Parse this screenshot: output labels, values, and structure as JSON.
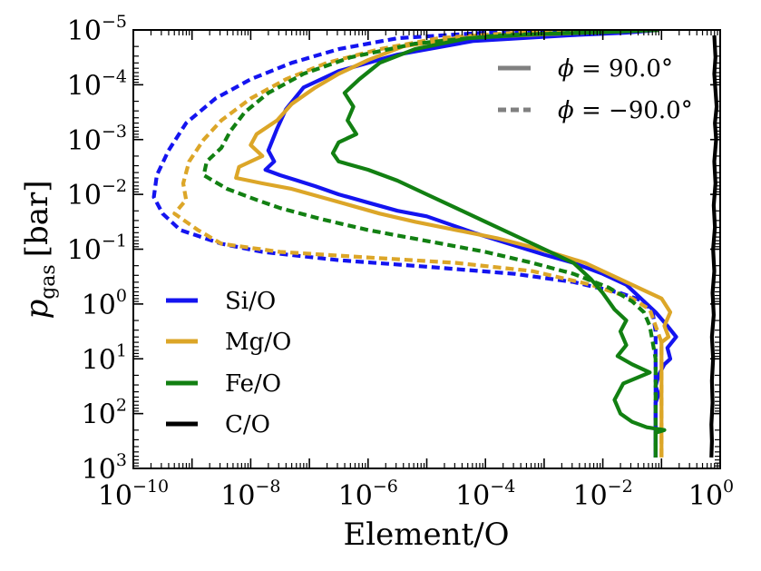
{
  "chart_data": {
    "type": "line",
    "xlabel": "Element/O",
    "ylabel": "p_gas [bar]",
    "ylabel_main": "p",
    "ylabel_sub": "gas",
    "ylabel_unit": "[bar]",
    "xscale": "log",
    "yscale": "log",
    "y_inverted": true,
    "xlim": [
      1e-10,
      1
    ],
    "ylim": [
      1000,
      1e-05
    ],
    "x_ticks": [
      {
        "base": "10",
        "exp": "−10",
        "value": 1e-10
      },
      {
        "base": "10",
        "exp": "−8",
        "value": 1e-08
      },
      {
        "base": "10",
        "exp": "−6",
        "value": 1e-06
      },
      {
        "base": "10",
        "exp": "−4",
        "value": 0.0001
      },
      {
        "base": "10",
        "exp": "−2",
        "value": 0.01
      },
      {
        "base": "10",
        "exp": "0",
        "value": 1
      }
    ],
    "y_ticks": [
      {
        "base": "10",
        "exp": "−5",
        "value": 1e-05
      },
      {
        "base": "10",
        "exp": "−4",
        "value": 0.0001
      },
      {
        "base": "10",
        "exp": "−3",
        "value": 0.001
      },
      {
        "base": "10",
        "exp": "−2",
        "value": 0.01
      },
      {
        "base": "10",
        "exp": "−1",
        "value": 0.1
      },
      {
        "base": "10",
        "exp": "0",
        "value": 1
      },
      {
        "base": "10",
        "exp": "1",
        "value": 10
      },
      {
        "base": "10",
        "exp": "2",
        "value": 100
      },
      {
        "base": "10",
        "exp": "3",
        "value": 1000
      }
    ],
    "linestyle_legend": [
      {
        "style": "solid",
        "label_phi": "ϕ",
        "label_value": " = 90.0°"
      },
      {
        "style": "dashed",
        "label_phi": "ϕ",
        "label_value": " = −90.0°"
      }
    ],
    "legend_position": "lower-left",
    "linestyle_legend_position": "top-right",
    "colors": {
      "Si/O": "#1414f0",
      "Mg/O": "#dca628",
      "Fe/O": "#128012",
      "C/O": "#000000"
    },
    "series": [
      {
        "name": "Si/O",
        "phi": 90,
        "style": "solid",
        "color": "#1414f0",
        "points": [
          [
            -1.05,
            -5
          ],
          [
            -1.6,
            -4.95
          ],
          [
            -2.6,
            -4.9
          ],
          [
            -4.2,
            -4.8
          ],
          [
            -5.5,
            -4.55
          ],
          [
            -6.5,
            -4.25
          ],
          [
            -7.1,
            -3.95
          ],
          [
            -7.4,
            -3.55
          ],
          [
            -7.55,
            -3.2
          ],
          [
            -7.7,
            -2.8
          ],
          [
            -7.6,
            -2.6
          ],
          [
            -7.75,
            -2.45
          ],
          [
            -7.5,
            -2.35
          ],
          [
            -7.2,
            -2.25
          ],
          [
            -6.9,
            -2.15
          ],
          [
            -6.5,
            -2.0
          ],
          [
            -6.0,
            -1.85
          ],
          [
            -5.5,
            -1.7
          ],
          [
            -5.0,
            -1.6
          ],
          [
            -4.6,
            -1.45
          ],
          [
            -4.2,
            -1.3
          ],
          [
            -3.6,
            -1.1
          ],
          [
            -3.0,
            -0.9
          ],
          [
            -2.5,
            -0.75
          ],
          [
            -2.0,
            -0.55
          ],
          [
            -1.6,
            -0.35
          ],
          [
            -1.3,
            -0.05
          ],
          [
            -1.1,
            0.15
          ],
          [
            -0.9,
            0.4
          ],
          [
            -0.75,
            0.6
          ],
          [
            -0.9,
            0.8
          ],
          [
            -0.85,
            1.0
          ],
          [
            -0.95,
            1.1
          ],
          [
            -1.05,
            1.3
          ],
          [
            -1.1,
            1.5
          ],
          [
            -1.05,
            1.65
          ],
          [
            -1.1,
            1.8
          ],
          [
            -1.1,
            2.2
          ],
          [
            -1.1,
            2.8
          ]
        ]
      },
      {
        "name": "Si/O",
        "phi": -90,
        "style": "dashed",
        "color": "#1414f0",
        "points": [
          [
            -2.5,
            -5
          ],
          [
            -4.0,
            -4.95
          ],
          [
            -5.5,
            -4.85
          ],
          [
            -6.5,
            -4.65
          ],
          [
            -7.3,
            -4.4
          ],
          [
            -8.0,
            -4.1
          ],
          [
            -8.6,
            -3.75
          ],
          [
            -9.1,
            -3.3
          ],
          [
            -9.4,
            -2.8
          ],
          [
            -9.6,
            -2.35
          ],
          [
            -9.65,
            -1.95
          ],
          [
            -9.5,
            -1.65
          ],
          [
            -9.2,
            -1.35
          ],
          [
            -8.5,
            -1.1
          ],
          [
            -7.8,
            -0.95
          ],
          [
            -6.5,
            -0.8
          ],
          [
            -5.0,
            -0.68
          ],
          [
            -3.5,
            -0.55
          ],
          [
            -2.5,
            -0.4
          ],
          [
            -1.7,
            -0.2
          ],
          [
            -1.3,
            -0.05
          ],
          [
            -1.15,
            0.15
          ],
          [
            -1.1,
            0.5
          ],
          [
            -1.1,
            1.0
          ],
          [
            -1.1,
            1.5
          ],
          [
            -1.1,
            2.0
          ],
          [
            -1.1,
            2.8
          ]
        ]
      },
      {
        "name": "Mg/O",
        "phi": 90,
        "style": "solid",
        "color": "#dca628",
        "points": [
          [
            -1.05,
            -5
          ],
          [
            -1.8,
            -4.97
          ],
          [
            -3.0,
            -4.92
          ],
          [
            -4.5,
            -4.85
          ],
          [
            -5.4,
            -4.7
          ],
          [
            -6.0,
            -4.45
          ],
          [
            -6.5,
            -4.2
          ],
          [
            -6.9,
            -3.95
          ],
          [
            -7.3,
            -3.65
          ],
          [
            -7.55,
            -3.35
          ],
          [
            -7.9,
            -3.1
          ],
          [
            -8.0,
            -2.9
          ],
          [
            -7.8,
            -2.7
          ],
          [
            -8.2,
            -2.5
          ],
          [
            -8.25,
            -2.3
          ],
          [
            -7.8,
            -2.2
          ],
          [
            -7.3,
            -2.1
          ],
          [
            -6.8,
            -1.95
          ],
          [
            -6.3,
            -1.8
          ],
          [
            -5.8,
            -1.65
          ],
          [
            -5.2,
            -1.5
          ],
          [
            -4.5,
            -1.35
          ],
          [
            -3.8,
            -1.2
          ],
          [
            -3.0,
            -0.98
          ],
          [
            -2.3,
            -0.75
          ],
          [
            -1.8,
            -0.5
          ],
          [
            -1.3,
            -0.25
          ],
          [
            -1.0,
            -0.1
          ],
          [
            -0.85,
            0.15
          ],
          [
            -0.95,
            0.4
          ],
          [
            -0.88,
            0.6
          ],
          [
            -1.0,
            0.7
          ],
          [
            -1.0,
            1.0
          ],
          [
            -1.0,
            2.0
          ],
          [
            -1.0,
            2.8
          ]
        ]
      },
      {
        "name": "Mg/O",
        "phi": -90,
        "style": "dashed",
        "color": "#dca628",
        "points": [
          [
            -2.0,
            -5
          ],
          [
            -3.5,
            -4.95
          ],
          [
            -4.8,
            -4.85
          ],
          [
            -5.8,
            -4.65
          ],
          [
            -6.7,
            -4.4
          ],
          [
            -7.4,
            -4.1
          ],
          [
            -8.0,
            -3.75
          ],
          [
            -8.5,
            -3.35
          ],
          [
            -8.8,
            -3.0
          ],
          [
            -9.05,
            -2.6
          ],
          [
            -9.15,
            -2.2
          ],
          [
            -9.1,
            -1.9
          ],
          [
            -9.3,
            -1.65
          ],
          [
            -8.9,
            -1.35
          ],
          [
            -8.5,
            -1.1
          ],
          [
            -7.5,
            -0.95
          ],
          [
            -6.0,
            -0.85
          ],
          [
            -4.5,
            -0.75
          ],
          [
            -3.2,
            -0.6
          ],
          [
            -2.2,
            -0.35
          ],
          [
            -1.5,
            -0.1
          ],
          [
            -1.2,
            0.1
          ],
          [
            -1.1,
            0.4
          ],
          [
            -1.0,
            0.7
          ],
          [
            -1.0,
            2.8
          ]
        ]
      },
      {
        "name": "Fe/O",
        "phi": 90,
        "style": "solid",
        "color": "#128012",
        "points": [
          [
            -1.05,
            -5
          ],
          [
            -2.0,
            -4.96
          ],
          [
            -3.2,
            -4.92
          ],
          [
            -4.3,
            -4.85
          ],
          [
            -5.2,
            -4.65
          ],
          [
            -5.8,
            -4.4
          ],
          [
            -6.15,
            -4.1
          ],
          [
            -6.4,
            -3.85
          ],
          [
            -6.25,
            -3.6
          ],
          [
            -6.35,
            -3.35
          ],
          [
            -6.2,
            -3.1
          ],
          [
            -6.5,
            -2.95
          ],
          [
            -6.6,
            -2.75
          ],
          [
            -6.5,
            -2.6
          ],
          [
            -6.0,
            -2.45
          ],
          [
            -5.5,
            -2.25
          ],
          [
            -5.0,
            -2.0
          ],
          [
            -4.5,
            -1.75
          ],
          [
            -4.0,
            -1.5
          ],
          [
            -3.4,
            -1.2
          ],
          [
            -2.9,
            -0.95
          ],
          [
            -2.5,
            -0.75
          ],
          [
            -2.2,
            -0.45
          ],
          [
            -2.0,
            -0.2
          ],
          [
            -1.8,
            0.1
          ],
          [
            -1.6,
            0.3
          ],
          [
            -1.7,
            0.5
          ],
          [
            -1.6,
            0.75
          ],
          [
            -1.75,
            0.95
          ],
          [
            -1.5,
            1.1
          ],
          [
            -1.2,
            1.25
          ],
          [
            -1.65,
            1.45
          ],
          [
            -1.8,
            1.75
          ],
          [
            -1.7,
            2.0
          ],
          [
            -1.5,
            2.15
          ],
          [
            -1.25,
            2.25
          ],
          [
            -0.95,
            2.3
          ],
          [
            -1.1,
            2.35
          ],
          [
            -1.1,
            2.8
          ]
        ]
      },
      {
        "name": "Fe/O",
        "phi": -90,
        "style": "dashed",
        "color": "#128012",
        "points": [
          [
            -1.05,
            -5
          ],
          [
            -2.5,
            -4.95
          ],
          [
            -3.8,
            -4.9
          ],
          [
            -5.2,
            -4.75
          ],
          [
            -6.3,
            -4.5
          ],
          [
            -7.1,
            -4.2
          ],
          [
            -7.7,
            -3.85
          ],
          [
            -8.1,
            -3.5
          ],
          [
            -8.35,
            -3.15
          ],
          [
            -8.5,
            -2.85
          ],
          [
            -8.75,
            -2.6
          ],
          [
            -8.8,
            -2.35
          ],
          [
            -8.4,
            -2.1
          ],
          [
            -7.9,
            -1.9
          ],
          [
            -7.5,
            -1.75
          ],
          [
            -6.8,
            -1.55
          ],
          [
            -6.0,
            -1.35
          ],
          [
            -5.0,
            -1.15
          ],
          [
            -4.0,
            -0.95
          ],
          [
            -3.2,
            -0.75
          ],
          [
            -2.5,
            -0.55
          ],
          [
            -1.9,
            -0.3
          ],
          [
            -1.5,
            -0.05
          ],
          [
            -1.3,
            0.15
          ],
          [
            -1.2,
            0.4
          ],
          [
            -1.15,
            0.7
          ],
          [
            -1.1,
            1.0
          ],
          [
            -1.1,
            2.8
          ]
        ]
      },
      {
        "name": "C/O",
        "phi": 90,
        "style": "solid",
        "color": "#000000",
        "points": [
          [
            -0.1,
            -4.9
          ],
          [
            -0.08,
            -4.5
          ],
          [
            -0.1,
            -4.2
          ],
          [
            -0.08,
            -3.9
          ],
          [
            -0.06,
            -3.6
          ],
          [
            -0.09,
            -3.3
          ],
          [
            -0.07,
            -3.0
          ],
          [
            -0.1,
            -2.6
          ],
          [
            -0.08,
            -2.2
          ],
          [
            -0.11,
            -1.8
          ],
          [
            -0.09,
            -1.4
          ],
          [
            -0.12,
            -1.0
          ],
          [
            -0.1,
            -0.6
          ],
          [
            -0.13,
            -0.2
          ],
          [
            -0.11,
            0.2
          ],
          [
            -0.14,
            0.6
          ],
          [
            -0.12,
            1.0
          ],
          [
            -0.14,
            1.4
          ],
          [
            -0.13,
            1.8
          ],
          [
            -0.15,
            2.2
          ],
          [
            -0.14,
            2.5
          ],
          [
            -0.15,
            2.8
          ]
        ]
      }
    ]
  }
}
